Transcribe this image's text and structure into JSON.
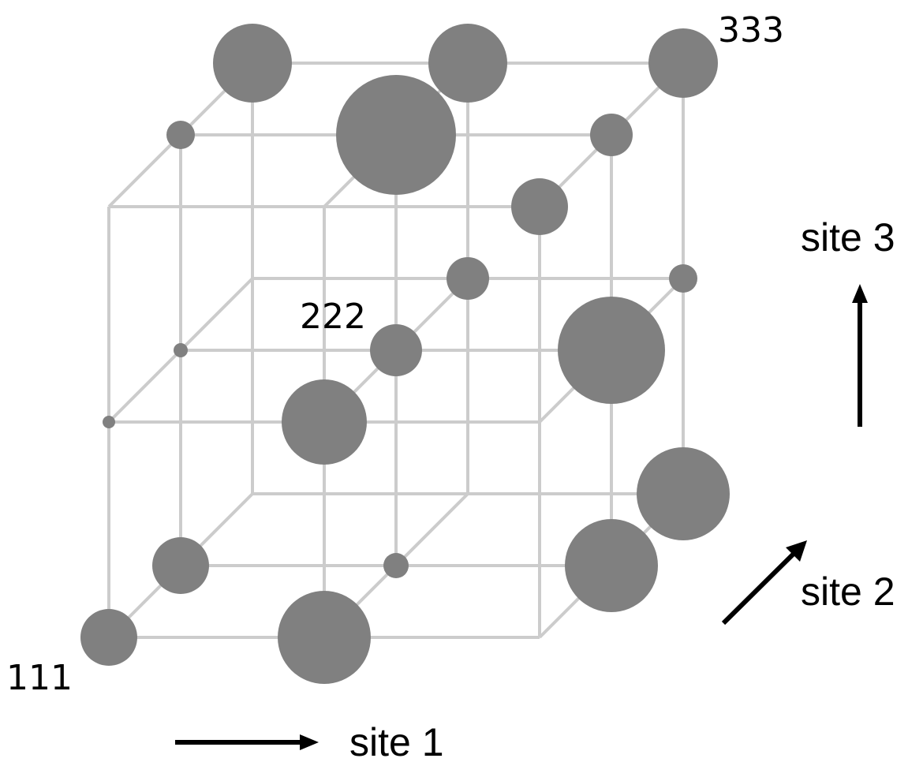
{
  "labels": {
    "corner_start": "111",
    "center": "222",
    "corner_end": "333"
  },
  "axes": {
    "site1": "site 1",
    "site2": "site 2",
    "site3": "site 3"
  },
  "colors": {
    "grid": "#cccccc",
    "node": "#808080",
    "arrow": "#000000"
  },
  "grid": {
    "size": 3,
    "index_values": [
      1,
      2,
      3
    ]
  },
  "nodes": [
    {
      "i": 1,
      "j": 1,
      "k": 1,
      "weight": 36
    },
    {
      "i": 2,
      "j": 1,
      "k": 1,
      "weight": 59
    },
    {
      "i": 1,
      "j": 2,
      "k": 1,
      "weight": 36
    },
    {
      "i": 2,
      "j": 2,
      "k": 1,
      "weight": 16
    },
    {
      "i": 3,
      "j": 2,
      "k": 1,
      "weight": 59
    },
    {
      "i": 3,
      "j": 3,
      "k": 1,
      "weight": 59
    },
    {
      "i": 1,
      "j": 1,
      "k": 2,
      "weight": 8
    },
    {
      "i": 2,
      "j": 1,
      "k": 2,
      "weight": 54
    },
    {
      "i": 1,
      "j": 2,
      "k": 2,
      "weight": 9
    },
    {
      "i": 2,
      "j": 2,
      "k": 2,
      "weight": 33
    },
    {
      "i": 3,
      "j": 2,
      "k": 2,
      "weight": 68
    },
    {
      "i": 2,
      "j": 3,
      "k": 2,
      "weight": 27
    },
    {
      "i": 3,
      "j": 3,
      "k": 2,
      "weight": 18
    },
    {
      "i": 3,
      "j": 1,
      "k": 3,
      "weight": 36
    },
    {
      "i": 1,
      "j": 2,
      "k": 3,
      "weight": 18
    },
    {
      "i": 2,
      "j": 2,
      "k": 3,
      "weight": 76
    },
    {
      "i": 3,
      "j": 2,
      "k": 3,
      "weight": 27
    },
    {
      "i": 1,
      "j": 3,
      "k": 3,
      "weight": 50
    },
    {
      "i": 2,
      "j": 3,
      "k": 3,
      "weight": 50
    },
    {
      "i": 3,
      "j": 3,
      "k": 3,
      "weight": 44
    }
  ]
}
